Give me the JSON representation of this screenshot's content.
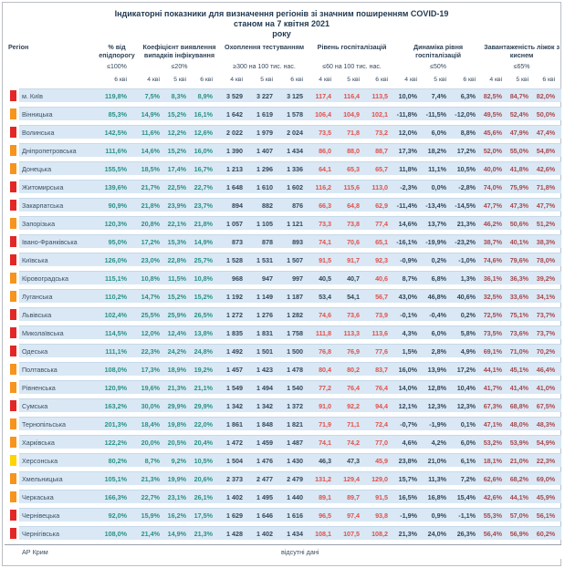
{
  "title": {
    "line1": "Індикаторні показники для визначення регіонів зі значним поширенням COVID-19",
    "line2": "станом на 7 квітня 2021",
    "line3": "року"
  },
  "colors": {
    "teal": "#2a9187",
    "navy": "#33475b",
    "red": "#e2504c",
    "maroon": "#a8494f",
    "marker_red": "#e32726",
    "marker_orange": "#f7941d",
    "marker_yellow": "#ffd400",
    "row_band": "#d9e8f4"
  },
  "header": {
    "region_label": "Регіон",
    "groups": [
      {
        "label": "% від епідпорогу",
        "threshold": "≤100%",
        "dates": [
          "6 кві"
        ]
      },
      {
        "label": "Коефіцієнт виявлення випадків інфікування",
        "threshold": "≤20%",
        "dates": [
          "4 кві",
          "5 кві",
          "6 кві"
        ]
      },
      {
        "label": "Охоплення тестуванням",
        "threshold": "≥300 на 100 тис. нас.",
        "dates": [
          "4 кві",
          "5 кві",
          "6 кві"
        ]
      },
      {
        "label": "Рівень госпіталізацій",
        "threshold": "≤60 на 100 тис. нас.",
        "dates": [
          "4 кві",
          "5 кві",
          "6 кві"
        ]
      },
      {
        "label": "Динаміка рівня госпіталізацій",
        "threshold": "≤50%",
        "dates": [
          "4 кві",
          "5 кві",
          "6 кві"
        ]
      },
      {
        "label": "Завантаженість ліжок з киснем",
        "threshold": "≤65%",
        "dates": [
          "4 кві",
          "5 кві",
          "6 кві"
        ]
      }
    ]
  },
  "rows": [
    {
      "region": "м. Київ",
      "marker": "red",
      "epid": "119,8%",
      "detect": [
        "7,5%",
        "8,3%",
        "8,9%"
      ],
      "test": [
        "3 529",
        "3 227",
        "3 125"
      ],
      "hosp": [
        "117,4",
        "116,4",
        "113,5"
      ],
      "dyn": [
        "10,0%",
        "7,4%",
        "6,3%"
      ],
      "beds": [
        "82,5%",
        "84,7%",
        "82,0%"
      ]
    },
    {
      "region": "Вінницька",
      "marker": "orange",
      "epid": "85,3%",
      "detect": [
        "14,9%",
        "15,2%",
        "16,1%"
      ],
      "test": [
        "1 642",
        "1 619",
        "1 578"
      ],
      "hosp": [
        "106,4",
        "104,9",
        "102,1"
      ],
      "dyn": [
        "-11,8%",
        "-11,5%",
        "-12,0%"
      ],
      "beds": [
        "49,5%",
        "52,4%",
        "50,0%"
      ]
    },
    {
      "region": "Волинська",
      "marker": "red",
      "epid": "142,5%",
      "detect": [
        "11,6%",
        "12,2%",
        "12,6%"
      ],
      "test": [
        "2 022",
        "1 979",
        "2 024"
      ],
      "hosp": [
        "73,5",
        "71,8",
        "73,2"
      ],
      "dyn": [
        "12,0%",
        "6,0%",
        "8,8%"
      ],
      "beds": [
        "45,6%",
        "47,9%",
        "47,4%"
      ]
    },
    {
      "region": "Дніпропетровська",
      "marker": "orange",
      "epid": "111,6%",
      "detect": [
        "14,6%",
        "15,2%",
        "16,0%"
      ],
      "test": [
        "1 390",
        "1 407",
        "1 434"
      ],
      "hosp": [
        "86,0",
        "88,0",
        "88,7"
      ],
      "dyn": [
        "17,3%",
        "18,2%",
        "17,2%"
      ],
      "beds": [
        "52,0%",
        "55,0%",
        "54,8%"
      ]
    },
    {
      "region": "Донецька",
      "marker": "orange",
      "epid": "155,5%",
      "detect": [
        "18,5%",
        "17,4%",
        "16,7%"
      ],
      "test": [
        "1 213",
        "1 296",
        "1 336"
      ],
      "hosp": [
        "64,1",
        "65,3",
        "65,7"
      ],
      "dyn": [
        "11,8%",
        "11,1%",
        "10,5%"
      ],
      "beds": [
        "40,0%",
        "41,8%",
        "42,6%"
      ]
    },
    {
      "region": "Житомирська",
      "marker": "red",
      "epid": "139,6%",
      "detect": [
        "21,7%",
        "22,5%",
        "22,7%"
      ],
      "test": [
        "1 648",
        "1 610",
        "1 602"
      ],
      "hosp": [
        "116,2",
        "115,6",
        "113,0"
      ],
      "dyn": [
        "-2,3%",
        "0,0%",
        "-2,8%"
      ],
      "beds": [
        "74,0%",
        "75,9%",
        "71,8%"
      ]
    },
    {
      "region": "Закарпатська",
      "marker": "red",
      "epid": "90,9%",
      "detect": [
        "21,8%",
        "23,9%",
        "23,7%"
      ],
      "test": [
        "894",
        "882",
        "876"
      ],
      "hosp": [
        "66,3",
        "64,8",
        "62,9"
      ],
      "dyn": [
        "-11,4%",
        "-13,4%",
        "-14,5%"
      ],
      "beds": [
        "47,7%",
        "47,3%",
        "47,7%"
      ]
    },
    {
      "region": "Запорізька",
      "marker": "orange",
      "epid": "120,3%",
      "detect": [
        "20,8%",
        "22,1%",
        "21,8%"
      ],
      "test": [
        "1 057",
        "1 105",
        "1 121"
      ],
      "hosp": [
        "73,3",
        "73,8",
        "77,4"
      ],
      "dyn": [
        "14,6%",
        "13,7%",
        "21,3%"
      ],
      "beds": [
        "46,2%",
        "50,6%",
        "51,2%"
      ]
    },
    {
      "region": "Івано-Франківська",
      "marker": "red",
      "epid": "95,0%",
      "detect": [
        "17,2%",
        "15,3%",
        "14,9%"
      ],
      "test": [
        "873",
        "878",
        "893"
      ],
      "hosp": [
        "74,1",
        "70,6",
        "65,1"
      ],
      "dyn": [
        "-16,1%",
        "-19,9%",
        "-23,2%"
      ],
      "beds": [
        "38,7%",
        "40,1%",
        "38,3%"
      ]
    },
    {
      "region": "Київська",
      "marker": "red",
      "epid": "126,0%",
      "detect": [
        "23,0%",
        "22,8%",
        "25,7%"
      ],
      "test": [
        "1 528",
        "1 531",
        "1 507"
      ],
      "hosp": [
        "91,5",
        "91,7",
        "92,3"
      ],
      "dyn": [
        "-0,9%",
        "0,2%",
        "-1,0%"
      ],
      "beds": [
        "74,6%",
        "79,6%",
        "78,0%"
      ]
    },
    {
      "region": "Кіровоградська",
      "marker": "orange",
      "epid": "115,1%",
      "detect": [
        "10,8%",
        "11,5%",
        "10,8%"
      ],
      "test": [
        "968",
        "947",
        "997"
      ],
      "hosp": [
        "40,5",
        "40,7",
        "40,6"
      ],
      "dyn": [
        "8,7%",
        "6,8%",
        "1,3%"
      ],
      "beds": [
        "36,1%",
        "36,3%",
        "39,2%"
      ]
    },
    {
      "region": "Луганська",
      "marker": "orange",
      "epid": "110,2%",
      "detect": [
        "14,7%",
        "15,2%",
        "15,2%"
      ],
      "test": [
        "1 192",
        "1 149",
        "1 187"
      ],
      "hosp": [
        "53,4",
        "54,1",
        "56,7"
      ],
      "dyn": [
        "43,0%",
        "46,8%",
        "40,6%"
      ],
      "beds": [
        "32,5%",
        "33,6%",
        "34,1%"
      ]
    },
    {
      "region": "Львівська",
      "marker": "red",
      "epid": "102,4%",
      "detect": [
        "25,5%",
        "25,9%",
        "26,5%"
      ],
      "test": [
        "1 272",
        "1 276",
        "1 282"
      ],
      "hosp": [
        "74,6",
        "73,6",
        "73,9"
      ],
      "dyn": [
        "-0,1%",
        "-0,4%",
        "0,2%"
      ],
      "beds": [
        "72,5%",
        "75,1%",
        "73,7%"
      ]
    },
    {
      "region": "Миколаївська",
      "marker": "red",
      "epid": "114,5%",
      "detect": [
        "12,0%",
        "12,4%",
        "13,8%"
      ],
      "test": [
        "1 835",
        "1 831",
        "1 758"
      ],
      "hosp": [
        "111,8",
        "113,3",
        "113,6"
      ],
      "dyn": [
        "4,3%",
        "6,0%",
        "5,8%"
      ],
      "beds": [
        "73,5%",
        "73,6%",
        "73,7%"
      ]
    },
    {
      "region": "Одеська",
      "marker": "red",
      "epid": "111,1%",
      "detect": [
        "22,3%",
        "24,2%",
        "24,8%"
      ],
      "test": [
        "1 492",
        "1 501",
        "1 500"
      ],
      "hosp": [
        "76,8",
        "76,9",
        "77,6"
      ],
      "dyn": [
        "1,5%",
        "2,8%",
        "4,9%"
      ],
      "beds": [
        "69,1%",
        "71,0%",
        "70,2%"
      ]
    },
    {
      "region": "Полтавська",
      "marker": "orange",
      "epid": "108,0%",
      "detect": [
        "17,3%",
        "18,9%",
        "19,2%"
      ],
      "test": [
        "1 457",
        "1 423",
        "1 478"
      ],
      "hosp": [
        "80,4",
        "80,2",
        "83,7"
      ],
      "dyn": [
        "16,0%",
        "13,9%",
        "17,2%"
      ],
      "beds": [
        "44,1%",
        "45,1%",
        "46,4%"
      ]
    },
    {
      "region": "Рівненська",
      "marker": "orange",
      "epid": "120,9%",
      "detect": [
        "19,6%",
        "21,3%",
        "21,1%"
      ],
      "test": [
        "1 549",
        "1 494",
        "1 540"
      ],
      "hosp": [
        "77,2",
        "76,4",
        "76,4"
      ],
      "dyn": [
        "14,0%",
        "12,8%",
        "10,4%"
      ],
      "beds": [
        "41,7%",
        "41,4%",
        "41,0%"
      ]
    },
    {
      "region": "Сумська",
      "marker": "red",
      "epid": "163,2%",
      "detect": [
        "30,0%",
        "29,9%",
        "29,9%"
      ],
      "test": [
        "1 342",
        "1 342",
        "1 372"
      ],
      "hosp": [
        "91,0",
        "92,2",
        "94,4"
      ],
      "dyn": [
        "12,1%",
        "12,3%",
        "12,3%"
      ],
      "beds": [
        "67,3%",
        "68,8%",
        "67,5%"
      ]
    },
    {
      "region": "Тернопільська",
      "marker": "orange",
      "epid": "201,3%",
      "detect": [
        "18,4%",
        "19,8%",
        "22,0%"
      ],
      "test": [
        "1 861",
        "1 848",
        "1 821"
      ],
      "hosp": [
        "71,9",
        "71,1",
        "72,4"
      ],
      "dyn": [
        "-0,7%",
        "-1,9%",
        "0,1%"
      ],
      "beds": [
        "47,1%",
        "48,0%",
        "48,3%"
      ]
    },
    {
      "region": "Харківська",
      "marker": "orange",
      "epid": "122,2%",
      "detect": [
        "20,0%",
        "20,5%",
        "20,4%"
      ],
      "test": [
        "1 472",
        "1 459",
        "1 487"
      ],
      "hosp": [
        "74,1",
        "74,2",
        "77,0"
      ],
      "dyn": [
        "4,6%",
        "4,2%",
        "6,0%"
      ],
      "beds": [
        "53,2%",
        "53,9%",
        "54,9%"
      ]
    },
    {
      "region": "Херсонська",
      "marker": "yellow",
      "epid": "80,2%",
      "detect": [
        "8,7%",
        "9,2%",
        "10,5%"
      ],
      "test": [
        "1 504",
        "1 476",
        "1 430"
      ],
      "hosp": [
        "46,3",
        "47,3",
        "45,9"
      ],
      "dyn": [
        "23,8%",
        "21,0%",
        "6,1%"
      ],
      "beds": [
        "18,1%",
        "21,0%",
        "22,3%"
      ]
    },
    {
      "region": "Хмельницька",
      "marker": "orange",
      "epid": "105,1%",
      "detect": [
        "21,3%",
        "19,9%",
        "20,6%"
      ],
      "test": [
        "2 373",
        "2 477",
        "2 479"
      ],
      "hosp": [
        "131,2",
        "129,4",
        "129,0"
      ],
      "dyn": [
        "15,7%",
        "11,3%",
        "7,2%"
      ],
      "beds": [
        "62,6%",
        "68,2%",
        "69,0%"
      ]
    },
    {
      "region": "Черкаська",
      "marker": "orange",
      "epid": "166,3%",
      "detect": [
        "22,7%",
        "23,1%",
        "26,1%"
      ],
      "test": [
        "1 402",
        "1 495",
        "1 440"
      ],
      "hosp": [
        "89,1",
        "89,7",
        "91,5"
      ],
      "dyn": [
        "16,5%",
        "16,8%",
        "15,4%"
      ],
      "beds": [
        "42,6%",
        "44,1%",
        "45,9%"
      ]
    },
    {
      "region": "Чернівецька",
      "marker": "red",
      "epid": "92,0%",
      "detect": [
        "15,9%",
        "16,2%",
        "17,5%"
      ],
      "test": [
        "1 629",
        "1 646",
        "1 616"
      ],
      "hosp": [
        "96,5",
        "97,4",
        "93,8"
      ],
      "dyn": [
        "-1,9%",
        "0,9%",
        "-1,1%"
      ],
      "beds": [
        "55,3%",
        "57,0%",
        "56,1%"
      ]
    },
    {
      "region": "Чернігівська",
      "marker": "red",
      "epid": "108,0%",
      "detect": [
        "21,4%",
        "14,9%",
        "21,3%"
      ],
      "test": [
        "1 428",
        "1 402",
        "1 434"
      ],
      "hosp": [
        "108,1",
        "107,5",
        "108,2"
      ],
      "dyn": [
        "21,3%",
        "24,0%",
        "26,3%"
      ],
      "beds": [
        "56,4%",
        "56,9%",
        "60,2%"
      ]
    }
  ],
  "footer": {
    "region": "АР Крим",
    "note": "відсутні дані"
  }
}
